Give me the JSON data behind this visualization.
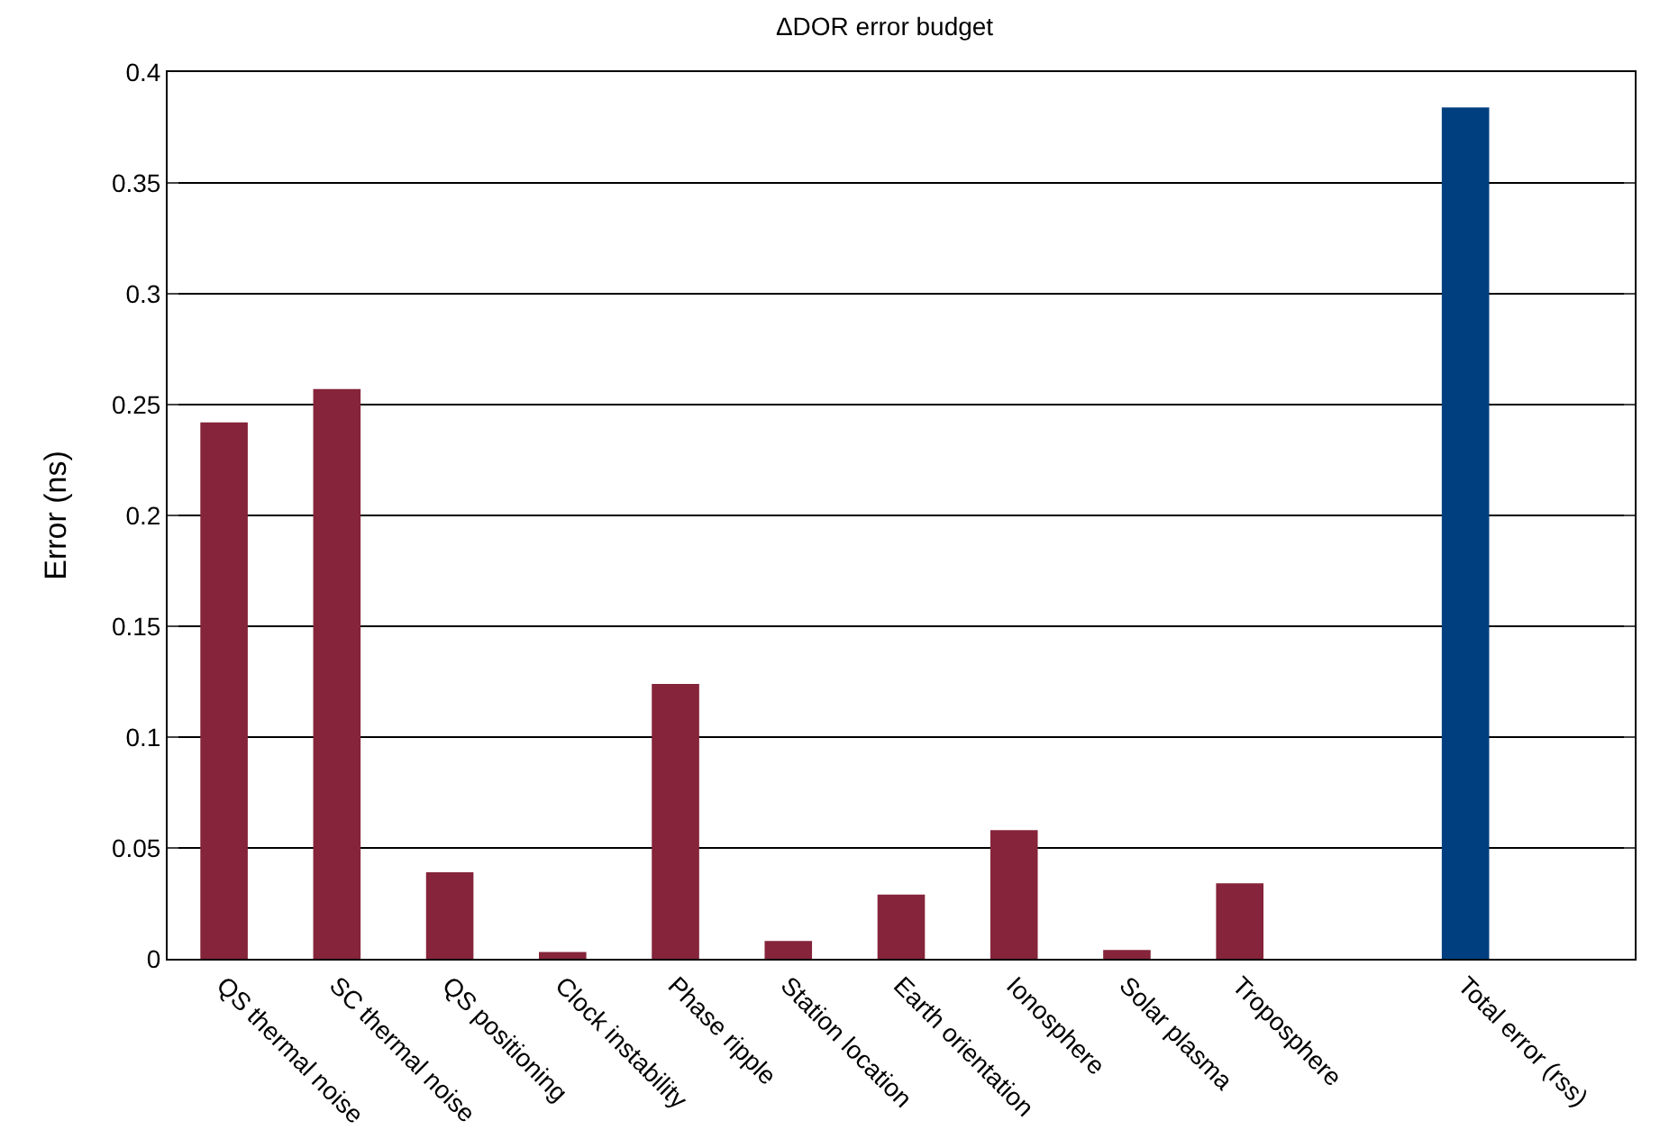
{
  "chart_data": {
    "type": "bar",
    "title": "ΔDOR error budget",
    "ylabel": "Error (ns)",
    "categories": [
      "QS thermal noise",
      "SC thermal noise",
      "QS positioning",
      "Clock instability",
      "Phase ripple",
      "Station location",
      "Earth orientation",
      "Ionosphere",
      "Solar plasma",
      "Troposphere",
      null,
      "Total error (rss)"
    ],
    "values": [
      0.242,
      0.257,
      0.039,
      0.003,
      0.124,
      0.008,
      0.029,
      0.058,
      0.004,
      0.034,
      null,
      0.384
    ],
    "colors": [
      "#85243a",
      "#85243a",
      "#85243a",
      "#85243a",
      "#85243a",
      "#85243a",
      "#85243a",
      "#85243a",
      "#85243a",
      "#85243a",
      "#85243a",
      "#003f7f"
    ],
    "ylim": [
      0,
      0.4
    ],
    "yticks": [
      0,
      0.05,
      0.1,
      0.15,
      0.2,
      0.25,
      0.3,
      0.35,
      0.4
    ],
    "grid": "y"
  }
}
